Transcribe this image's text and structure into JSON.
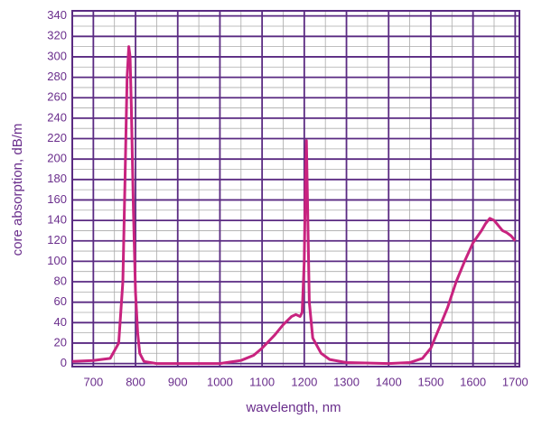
{
  "chart_data": {
    "type": "line",
    "x_label": "wavelength, nm",
    "y_label": "core absorption, dB/m",
    "x": [
      650,
      700,
      740,
      760,
      770,
      775,
      780,
      784,
      787,
      790,
      795,
      800,
      805,
      810,
      820,
      850,
      900,
      1000,
      1050,
      1080,
      1100,
      1130,
      1150,
      1170,
      1180,
      1190,
      1195,
      1200,
      1203,
      1205,
      1208,
      1212,
      1220,
      1240,
      1260,
      1300,
      1400,
      1450,
      1480,
      1500,
      1520,
      1540,
      1560,
      1580,
      1600,
      1620,
      1630,
      1640,
      1650,
      1660,
      1670,
      1680,
      1690,
      1700
    ],
    "values": [
      2,
      3,
      5,
      20,
      80,
      180,
      280,
      310,
      300,
      250,
      150,
      70,
      30,
      10,
      2,
      0,
      0,
      0,
      3,
      8,
      15,
      28,
      38,
      46,
      48,
      46,
      50,
      100,
      180,
      218,
      150,
      60,
      25,
      10,
      4,
      1,
      0,
      1,
      5,
      15,
      35,
      55,
      80,
      100,
      118,
      130,
      137,
      142,
      140,
      135,
      130,
      128,
      125,
      120
    ],
    "color": "#c8237f",
    "xlim": [
      650,
      1710
    ],
    "ylim": [
      -3,
      345
    ],
    "xticks": [
      700,
      800,
      900,
      1000,
      1100,
      1200,
      1300,
      1400,
      1500,
      1600,
      1700
    ],
    "yticks": [
      0,
      20,
      40,
      60,
      80,
      100,
      120,
      140,
      160,
      180,
      200,
      220,
      240,
      260,
      280,
      300,
      320,
      340
    ],
    "xminor": [
      650,
      750,
      850,
      950,
      1050,
      1150,
      1250,
      1350,
      1450,
      1550,
      1650
    ],
    "yminor": [
      10,
      30,
      50,
      70,
      90,
      110,
      130,
      150,
      170,
      190,
      210,
      230,
      250,
      270,
      290,
      310,
      330
    ],
    "grid": true,
    "axis_color": "#5a2a82"
  }
}
